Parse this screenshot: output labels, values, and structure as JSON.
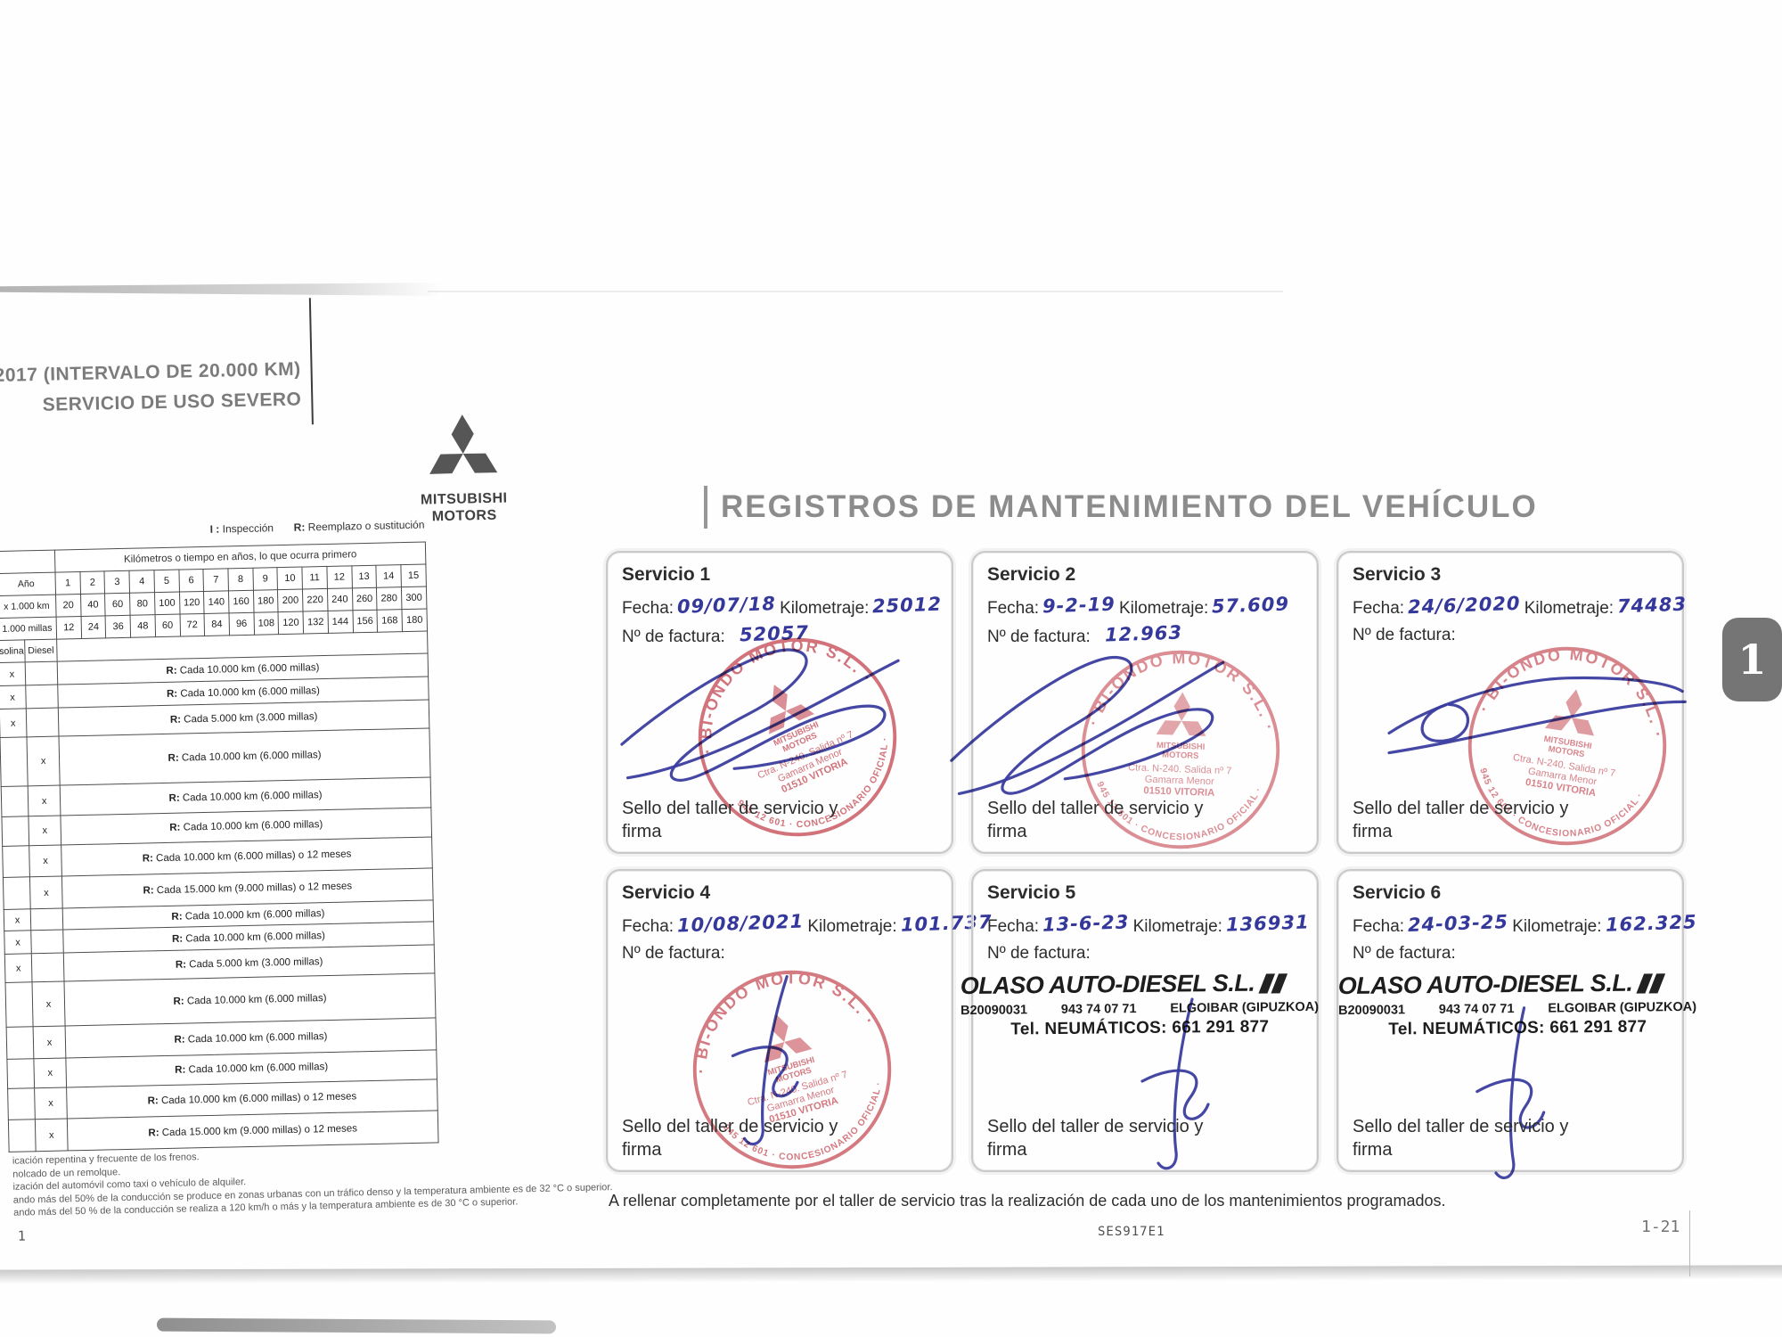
{
  "colors": {
    "handwriting_blue": "#35389b",
    "signature_blue": "#3a3da0",
    "stamp_red": "#c9545e",
    "title_gray": "#8c8c8c"
  },
  "left_panel": {
    "title_line1": "2017 (INTERVALO DE 20.000 KM)",
    "title_line2": "SERVICIO DE USO SEVERO",
    "brand_line1": "MITSUBISHI",
    "brand_line2": "MOTORS",
    "legend": {
      "i_key": "I :",
      "i_label": "Inspección",
      "r_key": "R:",
      "r_label": "Reemplazo o sustitución"
    },
    "page_number": "1"
  },
  "schedule_table": {
    "header_title": "Kilómetros o tiempo en años, lo que ocurra primero",
    "row_labels": {
      "anio": "Año",
      "km": "x 1.000 km",
      "millas": "1.000 millas"
    },
    "fuel_labels": {
      "gasolina": "solina",
      "diesel": "Diesel"
    },
    "anio": [
      "1",
      "2",
      "3",
      "4",
      "5",
      "6",
      "7",
      "8",
      "9",
      "10",
      "11",
      "12",
      "13",
      "14",
      "15"
    ],
    "km": [
      "20",
      "40",
      "60",
      "80",
      "100",
      "120",
      "140",
      "160",
      "180",
      "200",
      "220",
      "240",
      "260",
      "280",
      "300"
    ],
    "millas": [
      "12",
      "24",
      "36",
      "48",
      "60",
      "72",
      "84",
      "96",
      "108",
      "120",
      "132",
      "144",
      "156",
      "168",
      "180"
    ],
    "r_prefix": "R:",
    "rows": [
      {
        "gasolina": "x",
        "diesel": "",
        "interval": "Cada 10.000 km (6.000 millas)"
      },
      {
        "gasolina": "x",
        "diesel": "",
        "interval": "Cada 10.000 km (6.000 millas)"
      },
      {
        "gasolina": "x",
        "diesel": "",
        "interval": "Cada 5.000 km (3.000 millas)"
      },
      {
        "gasolina": "",
        "diesel": "x",
        "interval": "Cada 10.000 km (6.000 millas)"
      },
      {
        "gasolina": "",
        "diesel": "x",
        "interval": "Cada 10.000 km (6.000 millas)"
      },
      {
        "gasolina": "",
        "diesel": "x",
        "interval": "Cada 10.000 km (6.000 millas)"
      },
      {
        "gasolina": "",
        "diesel": "x",
        "interval": "Cada 10.000 km (6.000 millas) o 12 meses"
      },
      {
        "gasolina": "",
        "diesel": "x",
        "interval": "Cada 15.000 km (9.000 millas) o 12 meses"
      },
      {
        "gasolina": "x",
        "diesel": "",
        "interval": "Cada 10.000 km (6.000 millas)"
      },
      {
        "gasolina": "x",
        "diesel": "",
        "interval": "Cada 10.000 km (6.000 millas)"
      },
      {
        "gasolina": "x",
        "diesel": "",
        "interval": "Cada 5.000 km (3.000 millas)"
      },
      {
        "gasolina": "",
        "diesel": "x",
        "interval": "Cada 10.000 km (6.000 millas)"
      },
      {
        "gasolina": "",
        "diesel": "x",
        "interval": "Cada 10.000 km (6.000 millas)"
      },
      {
        "gasolina": "",
        "diesel": "x",
        "interval": "Cada 10.000 km (6.000 millas)"
      },
      {
        "gasolina": "",
        "diesel": "x",
        "interval": "Cada 10.000 km (6.000 millas) o 12 meses"
      },
      {
        "gasolina": "",
        "diesel": "x",
        "interval": "Cada 15.000 km (9.000 millas) o 12 meses"
      }
    ]
  },
  "footnotes": [
    "icación repentina y frecuente de los frenos.",
    "nolcado de un remolque.",
    "ización del automóvil como taxi o vehículo de alquiler.",
    "ando más del 50% de la conducción se produce en zonas urbanas con un tráfico denso y la temperatura ambiente es de 32 °C o superior.",
    "ando más del 50 % de la conducción se realiza a 120 km/h o más y la temperatura ambiente es de 30 °C o superior."
  ],
  "main": {
    "title": "REGISTROS DE MANTENIMIENTO DEL VEHÍCULO",
    "field_labels": {
      "fecha": "Fecha:",
      "kilometraje": "Kilometraje:",
      "factura": "Nº de factura:"
    },
    "sello_label_line1": "Sello del taller de servicio y",
    "sello_label_line2": "firma",
    "services": [
      {
        "title": "Servicio 1",
        "fecha": "09/07/18",
        "kilometraje": "25012",
        "factura": "52057",
        "stamp": "biondo"
      },
      {
        "title": "Servicio 2",
        "fecha": "9-2-19",
        "kilometraje": "57.609",
        "factura": "12.963",
        "stamp": "biondo"
      },
      {
        "title": "Servicio 3",
        "fecha": "24/6/2020",
        "kilometraje": "74483",
        "factura": "",
        "stamp": "biondo"
      },
      {
        "title": "Servicio 4",
        "fecha": "10/08/2021",
        "kilometraje": "101.737",
        "factura": "",
        "stamp": "biondo"
      },
      {
        "title": "Servicio 5",
        "fecha": "13-6-23",
        "kilometraje": "136931",
        "factura": "",
        "stamp": "olaso"
      },
      {
        "title": "Servicio 6",
        "fecha": "24-03-25",
        "kilometraje": "162.325",
        "factura": "",
        "stamp": "olaso"
      }
    ],
    "footer_note": "A rellenar completamente por el taller de servicio tras la realización de cada uno de los mantenimientos programados.",
    "doc_code": "SES917E1",
    "page_ref": "1-21",
    "tab_label": "1"
  },
  "stamps": {
    "biondo": {
      "arc_top": "· BI-ONDO MOTOR S.L. ·",
      "arc_bottom": "945 12 601 · CONCESIONARIO OFICIAL ·",
      "center_line1": "MITSUBISHI",
      "center_line2": "MOTORS",
      "addr1": "Ctra. N-240. Salida nº 7",
      "addr2": "Gamarra Menor",
      "addr3": "01510 VITORIA"
    },
    "olaso": {
      "name": "OLASO AUTO-DIESEL S.L.",
      "reg": "B20090031",
      "phone": "943 74 07 71",
      "city": "ELGOIBAR (GIPUZKOA)",
      "tel_line": "Tel. NEUMÁTICOS: 661 291 877"
    }
  }
}
